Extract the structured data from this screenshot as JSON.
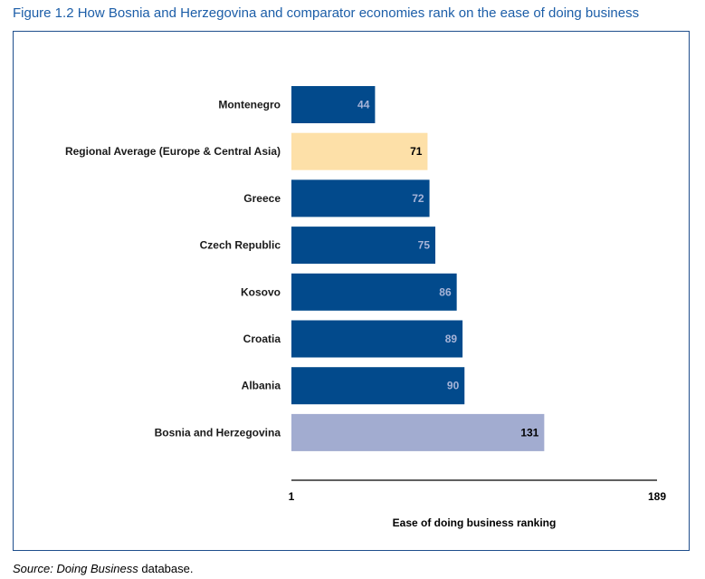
{
  "figure": {
    "title": "Figure 1.2 How Bosnia and Herzegovina and comparator economies rank on the ease of doing business"
  },
  "source": {
    "prefix": "Source:",
    "italic": "Doing Business",
    "suffix": " database."
  },
  "chart_data": {
    "type": "bar",
    "orientation": "horizontal",
    "categories": [
      "Montenegro",
      "Regional Average (Europe & Central Asia)",
      "Greece",
      "Czech Republic",
      "Kosovo",
      "Croatia",
      "Albania",
      "Bosnia and Herzegovina"
    ],
    "values": [
      44,
      71,
      72,
      75,
      86,
      89,
      90,
      131
    ],
    "bar_colors": [
      "#024a8c",
      "#fde0a8",
      "#024a8c",
      "#024a8c",
      "#024a8c",
      "#024a8c",
      "#024a8c",
      "#a2acd0"
    ],
    "value_label_colors": [
      "#a7b4d8",
      "#000000",
      "#a7b4d8",
      "#a7b4d8",
      "#a7b4d8",
      "#a7b4d8",
      "#a7b4d8",
      "#000000"
    ],
    "xlim": [
      1,
      189
    ],
    "xticks": [
      "1",
      "189"
    ],
    "xlabel": "Ease of doing business ranking",
    "grid": false,
    "legend": "none"
  }
}
